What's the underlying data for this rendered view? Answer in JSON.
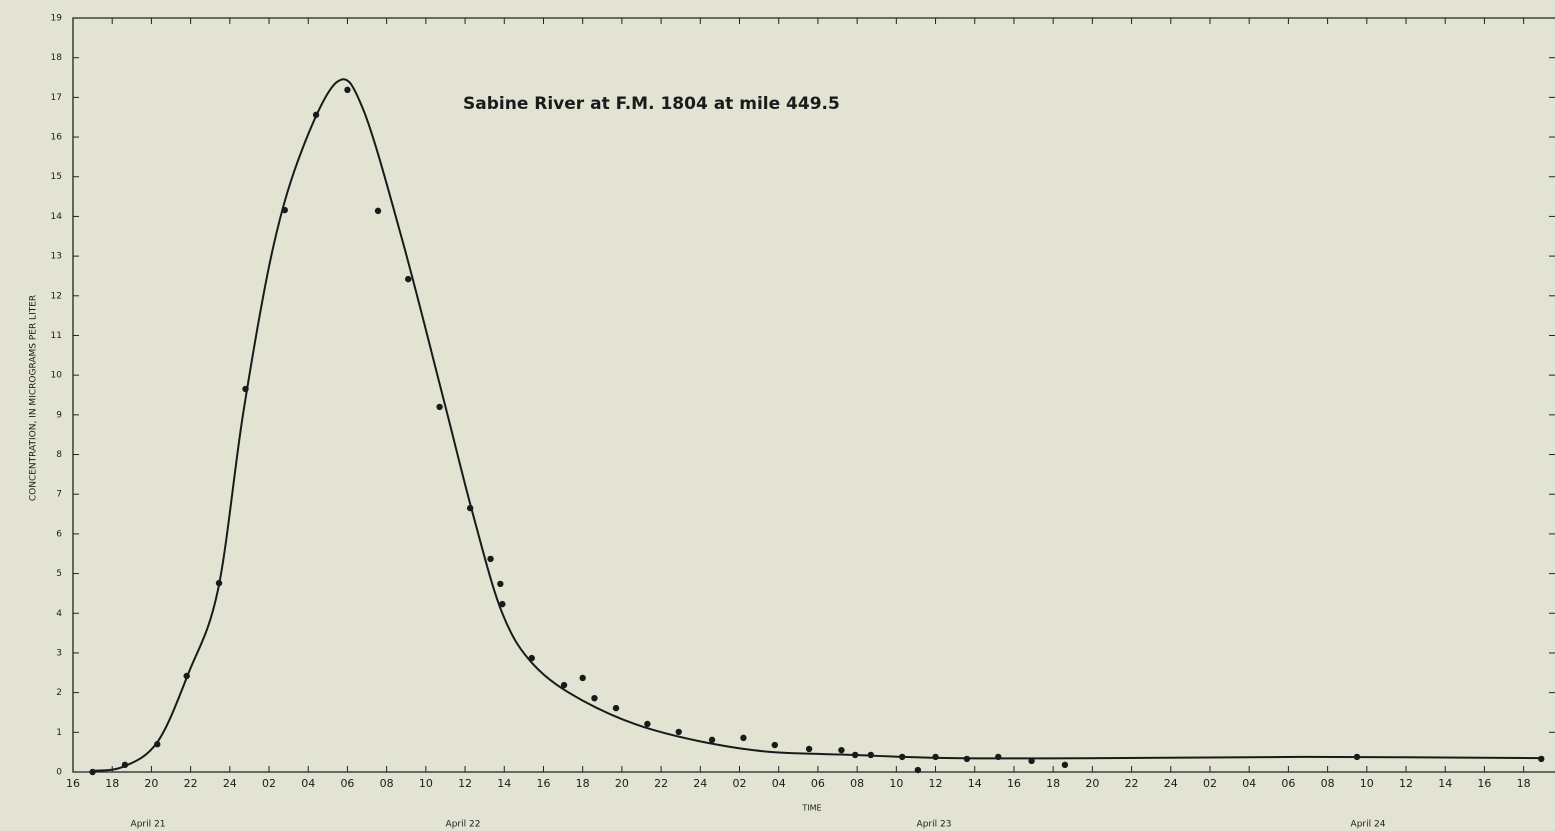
{
  "chart_data": {
    "type": "scatter",
    "title": "Sabine River at F.M. 1804 at mile 449.5",
    "y_label": "CONCENTRATION, IN MICROGRAMS PER LITER",
    "x_label": "TIME",
    "date_labels": [
      "April 21",
      "April 22",
      "April 23",
      "April 24"
    ],
    "color": "#1a1a1a",
    "xlim": [
      16,
      91.6
    ],
    "ylim": [
      0,
      19
    ],
    "yticks": [
      0,
      1,
      2,
      3,
      4,
      5,
      6,
      7,
      8,
      9,
      10,
      11,
      12,
      13,
      14,
      15,
      16,
      17,
      18,
      19
    ],
    "xticks": [
      16,
      18,
      20,
      22,
      24,
      {
        "value": 26,
        "label": "02"
      },
      {
        "value": 28,
        "label": "04"
      },
      {
        "value": 30,
        "label": "06"
      },
      {
        "value": 32,
        "label": "08"
      },
      {
        "value": 34,
        "label": "10"
      },
      {
        "value": 36,
        "label": "12"
      },
      {
        "value": 38,
        "label": "14"
      },
      {
        "value": 40,
        "label": "16"
      },
      {
        "value": 42,
        "label": "18"
      },
      {
        "value": 44,
        "label": "20"
      },
      {
        "value": 46,
        "label": "22"
      },
      {
        "value": 48,
        "label": "24"
      },
      {
        "value": 50,
        "label": "02"
      },
      {
        "value": 52,
        "label": "04"
      },
      {
        "value": 54,
        "label": "06"
      },
      {
        "value": 56,
        "label": "08"
      },
      {
        "value": 58,
        "label": "10"
      },
      {
        "value": 60,
        "label": "12"
      },
      {
        "value": 62,
        "label": "14"
      },
      {
        "value": 64,
        "label": "16"
      },
      {
        "value": 66,
        "label": "18"
      },
      {
        "value": 68,
        "label": "20"
      },
      {
        "value": 70,
        "label": "22"
      },
      {
        "value": 72,
        "label": "24"
      },
      {
        "value": 74,
        "label": "02"
      },
      {
        "value": 76,
        "label": "04"
      },
      {
        "value": 78,
        "label": "06"
      },
      {
        "value": 80,
        "label": "08"
      },
      {
        "value": 82,
        "label": "10"
      },
      {
        "value": 84,
        "label": "12"
      },
      {
        "value": 86,
        "label": "14"
      },
      {
        "value": 88,
        "label": "16"
      },
      {
        "value": 90,
        "label": "18"
      }
    ],
    "points": {
      "x": [
        17.0,
        18.65,
        20.3,
        21.8,
        23.45,
        24.8,
        26.8,
        28.4,
        30.0,
        31.56,
        33.1,
        34.7,
        36.26,
        37.3,
        37.8,
        37.9,
        39.4,
        41.05,
        42.0,
        42.6,
        43.7,
        45.3,
        46.9,
        48.6,
        50.2,
        51.8,
        53.55,
        55.2,
        55.9,
        56.7,
        58.3,
        59.1,
        60.0,
        61.6,
        63.2,
        64.9,
        66.6,
        81.5,
        90.9
      ],
      "values": [
        0.0,
        0.18,
        0.7,
        2.42,
        4.76,
        9.65,
        14.16,
        16.56,
        17.19,
        14.14,
        12.42,
        9.2,
        6.65,
        5.37,
        4.74,
        4.23,
        2.87,
        2.19,
        2.37,
        1.86,
        1.61,
        1.21,
        1.01,
        0.81,
        0.86,
        0.68,
        0.58,
        0.55,
        0.43,
        0.43,
        0.38,
        0.05,
        0.38,
        0.33,
        0.38,
        0.28,
        0.18,
        0.38,
        0.33
      ]
    },
    "curve": {
      "x": [
        16.9,
        18.55,
        20.3,
        21.9,
        23.4,
        24.7,
        26.2,
        27.7,
        29.5,
        30.8,
        32.8,
        34.9,
        36.4,
        37.9,
        39.5,
        42.0,
        45.6,
        50.7,
        55.8,
        60.9,
        68.6,
        78.8,
        91.0
      ],
      "values": [
        0.03,
        0.13,
        0.75,
        2.5,
        4.6,
        9.1,
        13.2,
        15.7,
        17.4,
        16.7,
        13.4,
        9.4,
        6.5,
        4.0,
        2.7,
        1.8,
        1.06,
        0.55,
        0.43,
        0.35,
        0.35,
        0.38,
        0.35
      ]
    }
  }
}
